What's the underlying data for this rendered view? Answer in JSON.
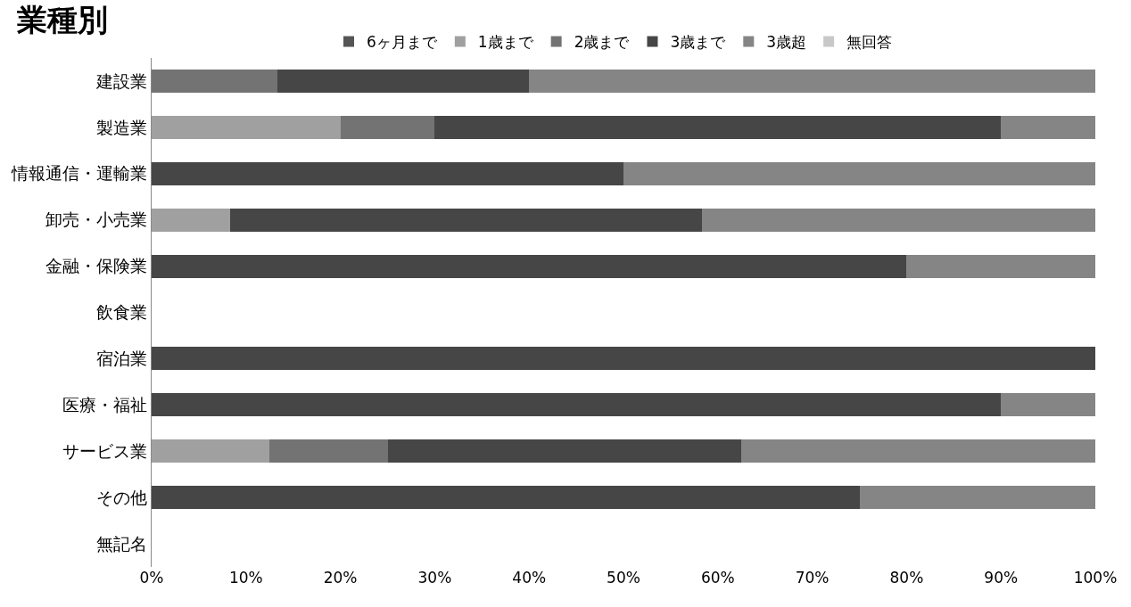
{
  "chart_data": {
    "type": "bar",
    "title": "業種別",
    "orientation": "horizontal",
    "stacked": true,
    "legend": "top",
    "categories": [
      "建設業",
      "製造業",
      "情報通信・運輸業",
      "卸売・小売業",
      "金融・保険業",
      "飲食業",
      "宿泊業",
      "医療・福祉",
      "サービス業",
      "その他",
      "無記名"
    ],
    "series": [
      {
        "name": "6ヶ月まで",
        "color": "#555555",
        "values": [
          null,
          null,
          null,
          null,
          null,
          null,
          null,
          null,
          null,
          null,
          null
        ]
      },
      {
        "name": "1歳まで",
        "color": "#a0a0a0",
        "values": [
          null,
          20,
          null,
          8.3,
          null,
          null,
          null,
          null,
          12.5,
          null,
          null
        ]
      },
      {
        "name": "2歳まで",
        "color": "#737373",
        "values": [
          13.3,
          10,
          null,
          null,
          null,
          null,
          null,
          null,
          12.5,
          null,
          null
        ]
      },
      {
        "name": "3歳まで",
        "color": "#464646",
        "values": [
          26.7,
          60,
          50,
          50,
          80,
          null,
          100,
          90,
          37.5,
          75,
          null
        ]
      },
      {
        "name": "3歳超",
        "color": "#858585",
        "values": [
          60,
          10,
          50,
          41.7,
          20,
          null,
          null,
          10,
          37.5,
          25,
          null
        ]
      },
      {
        "name": "無回答",
        "color": "#c8c8c8",
        "values": [
          null,
          null,
          null,
          null,
          null,
          null,
          null,
          null,
          null,
          null,
          null
        ]
      }
    ],
    "xlim": [
      0,
      100
    ],
    "xticks": [
      {
        "value": 0,
        "label": "0%"
      },
      {
        "value": 10,
        "label": "10%"
      },
      {
        "value": 20,
        "label": "20%"
      },
      {
        "value": 30,
        "label": "30%"
      },
      {
        "value": 40,
        "label": "40%"
      },
      {
        "value": 50,
        "label": "50%"
      },
      {
        "value": 60,
        "label": "60%"
      },
      {
        "value": 70,
        "label": "70%"
      },
      {
        "value": 80,
        "label": "80%"
      },
      {
        "value": 90,
        "label": "90%"
      },
      {
        "value": 100,
        "label": "100%"
      }
    ]
  }
}
